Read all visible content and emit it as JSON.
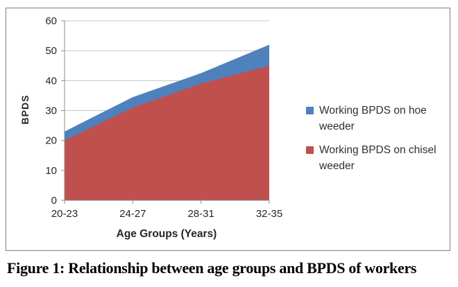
{
  "figure": {
    "caption": "Figure 1: Relationship between age groups and BPDS of workers"
  },
  "chart_data": {
    "type": "area",
    "title": "",
    "categories": [
      "20-23",
      "24-27",
      "28-31",
      "32-35"
    ],
    "series": [
      {
        "name": "Working BPDS on hoe weeder",
        "color": "#4F81BD",
        "values": [
          23,
          34.5,
          42.5,
          52
        ]
      },
      {
        "name": "Working BPDS on chisel weeder",
        "color": "#C0504D",
        "values": [
          20,
          31,
          39,
          45
        ]
      }
    ],
    "xlabel": "Age Groups (Years)",
    "ylabel": "BPDS",
    "ylim": [
      0,
      60
    ],
    "y_ticks": [
      0,
      10,
      20,
      30,
      40,
      50,
      60
    ],
    "grid": true,
    "legend_position": "right",
    "stacked": false
  },
  "colors": {
    "gridline": "#c3c3c3",
    "axis": "#8e8e8e",
    "tick_text": "#262626",
    "frame_border": "#7f7f7f",
    "background": "#ffffff"
  }
}
